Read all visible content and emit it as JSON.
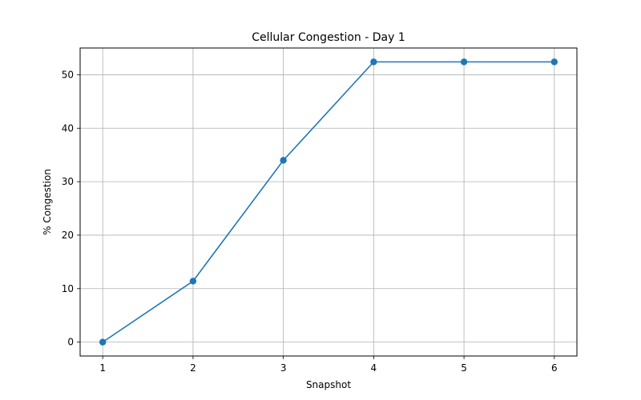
{
  "chart_data": {
    "type": "line",
    "title": "Cellular Congestion - Day 1",
    "xlabel": "Snapshot",
    "ylabel": "% Congestion",
    "x": [
      1,
      2,
      3,
      4,
      5,
      6
    ],
    "series": [
      {
        "values": [
          0,
          11.4,
          34.0,
          52.4,
          52.4,
          52.4
        ],
        "color": "#1f77b4",
        "marker": "circle"
      }
    ],
    "xlim": [
      0.75,
      6.25
    ],
    "ylim": [
      -2.6,
      55
    ],
    "xticks": [
      1,
      2,
      3,
      4,
      5,
      6
    ],
    "yticks": [
      0,
      10,
      20,
      30,
      40,
      50
    ],
    "grid": true,
    "grid_color": "#b0b0b0",
    "legend": "none"
  }
}
